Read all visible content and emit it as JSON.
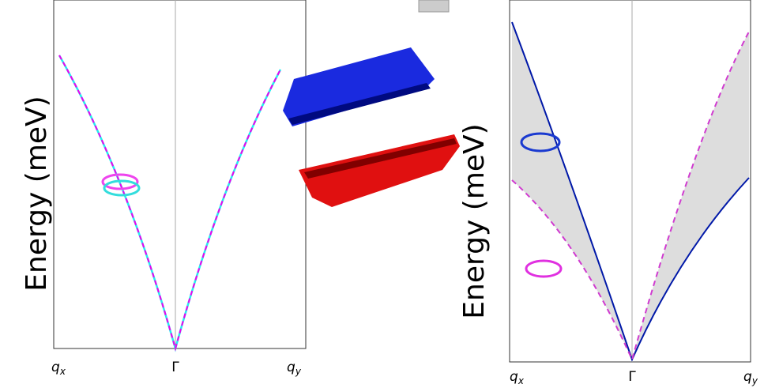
{
  "panels": [
    {
      "ylabel": "Energy (meV)",
      "xticks": [
        {
          "base": "q",
          "sub": "x"
        },
        {
          "base": "Γ"
        },
        {
          "base": "q",
          "sub": "y"
        }
      ]
    },
    {
      "ylabel": "Energy (meV)",
      "xticks": [
        {
          "base": "q",
          "sub": "x"
        },
        {
          "base": "Γ"
        },
        {
          "base": "q",
          "sub": "y"
        }
      ]
    }
  ]
}
